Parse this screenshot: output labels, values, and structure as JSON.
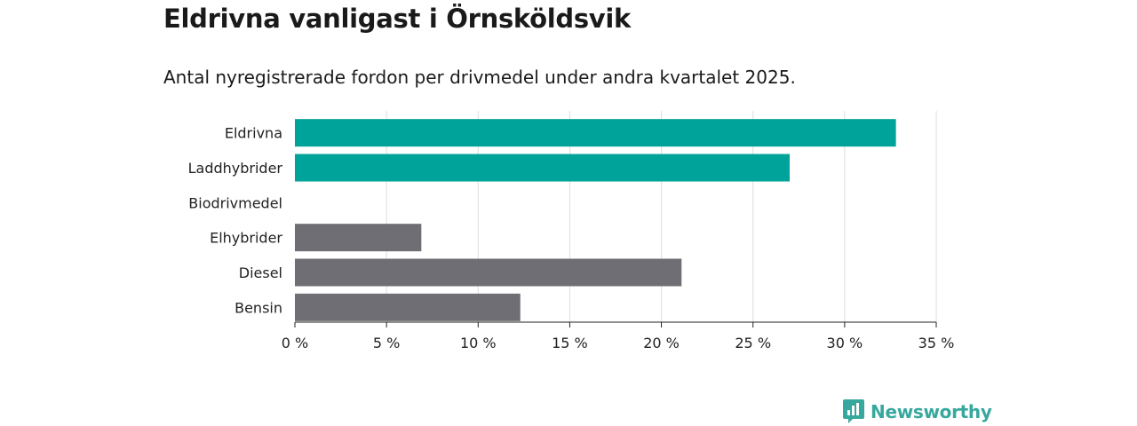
{
  "title": "Eldrivna vanligast i Örnsköldsvik",
  "subtitle": "Antal nyregistrerade fordon per drivmedel under andra kvartalet 2025.",
  "brand": {
    "name": "Newsworthy",
    "icon": "newsworthy-logo-icon",
    "color": "#36a89d"
  },
  "chart_data": {
    "type": "bar",
    "orientation": "horizontal",
    "categories": [
      "Eldrivna",
      "Laddhybrider",
      "Biodrivmedel",
      "Elhybrider",
      "Diesel",
      "Bensin"
    ],
    "values": [
      32.8,
      27.0,
      0,
      6.9,
      21.1,
      12.3
    ],
    "bar_colors": [
      "#00a39a",
      "#00a39a",
      "#6e6e74",
      "#6e6e74",
      "#6e6e74",
      "#6e6e74"
    ],
    "x_ticks": [
      0,
      5,
      10,
      15,
      20,
      25,
      30,
      35
    ],
    "x_tick_labels": [
      "0 %",
      "5 %",
      "10 %",
      "15 %",
      "20 %",
      "25 %",
      "30 %",
      "35 %"
    ],
    "xlim": [
      0,
      35
    ],
    "xlabel": "",
    "ylabel": "",
    "grid": true,
    "gridline_color": "#dddddd"
  }
}
